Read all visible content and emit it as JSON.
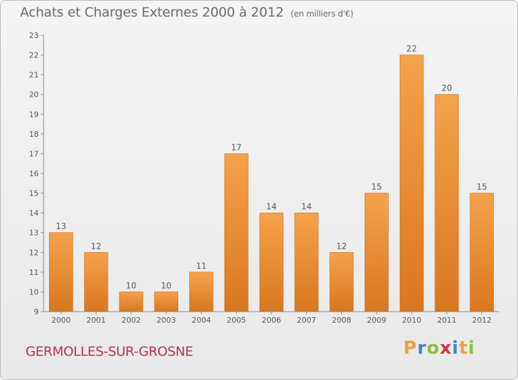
{
  "title": "Achats et Charges Externes 2000 à 2012",
  "unit": "(en milliers d'€)",
  "place": "GERMOLLES-SUR-GROSNE",
  "logo": {
    "text": "Proxiti",
    "letters": [
      "P",
      "r",
      "o",
      "x",
      "i",
      "t",
      "i"
    ],
    "colors": [
      "#e8a23a",
      "#3a89c9",
      "#8bbf3f",
      "#d8343f",
      "#3a89c9",
      "#e8a23a",
      "#8bbf3f"
    ]
  },
  "colors": {
    "bar_top": "#f5a24c",
    "bar_bottom": "#d9771f",
    "place": "#b8324a",
    "text": "#555555"
  },
  "chart_data": {
    "type": "bar",
    "categories": [
      "2000",
      "2001",
      "2002",
      "2003",
      "2004",
      "2005",
      "2006",
      "2007",
      "2008",
      "2009",
      "2010",
      "2011",
      "2012"
    ],
    "values": [
      13,
      12,
      10,
      10,
      11,
      17,
      14,
      14,
      12,
      15,
      22,
      20,
      15
    ],
    "title": "Achats et Charges Externes 2000 à 2012",
    "xlabel": "",
    "ylabel": "",
    "ylim": [
      9,
      23
    ],
    "yticks": [
      9,
      10,
      11,
      12,
      13,
      14,
      15,
      16,
      17,
      18,
      19,
      20,
      21,
      22,
      23
    ],
    "grid": false
  }
}
